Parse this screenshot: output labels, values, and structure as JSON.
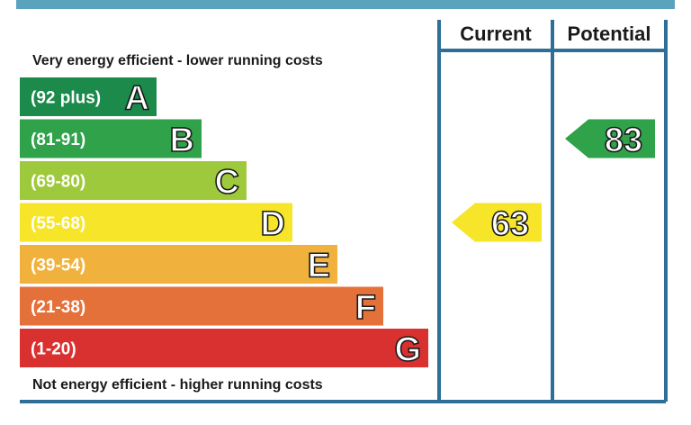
{
  "chart_data": {
    "type": "bar",
    "columns": {
      "current": "Current",
      "potential": "Potential"
    },
    "top_caption": "Very energy efficient - lower running costs",
    "bottom_caption": "Not energy efficient - higher running costs",
    "bands": [
      {
        "letter": "A",
        "range": "(92 plus)",
        "color": "#1b8a4a",
        "min": 92,
        "max": 100
      },
      {
        "letter": "B",
        "range": "(81-91)",
        "color": "#2fa24a",
        "min": 81,
        "max": 91
      },
      {
        "letter": "C",
        "range": "(69-80)",
        "color": "#9fc93c",
        "min": 69,
        "max": 80
      },
      {
        "letter": "D",
        "range": "(55-68)",
        "color": "#f6e528",
        "min": 55,
        "max": 68
      },
      {
        "letter": "E",
        "range": "(39-54)",
        "color": "#f0b23c",
        "min": 39,
        "max": 54
      },
      {
        "letter": "F",
        "range": "(21-38)",
        "color": "#e4703a",
        "min": 21,
        "max": 38
      },
      {
        "letter": "G",
        "range": "(1-20)",
        "color": "#d9312f",
        "min": 1,
        "max": 20
      }
    ],
    "current_rating": {
      "value": 63,
      "band": "D",
      "color": "#f6e528"
    },
    "potential_rating": {
      "value": 83,
      "band": "B",
      "color": "#2fa24a"
    },
    "frame_color": "#2f6e96",
    "top_bar_color": "#5aa3bd"
  }
}
